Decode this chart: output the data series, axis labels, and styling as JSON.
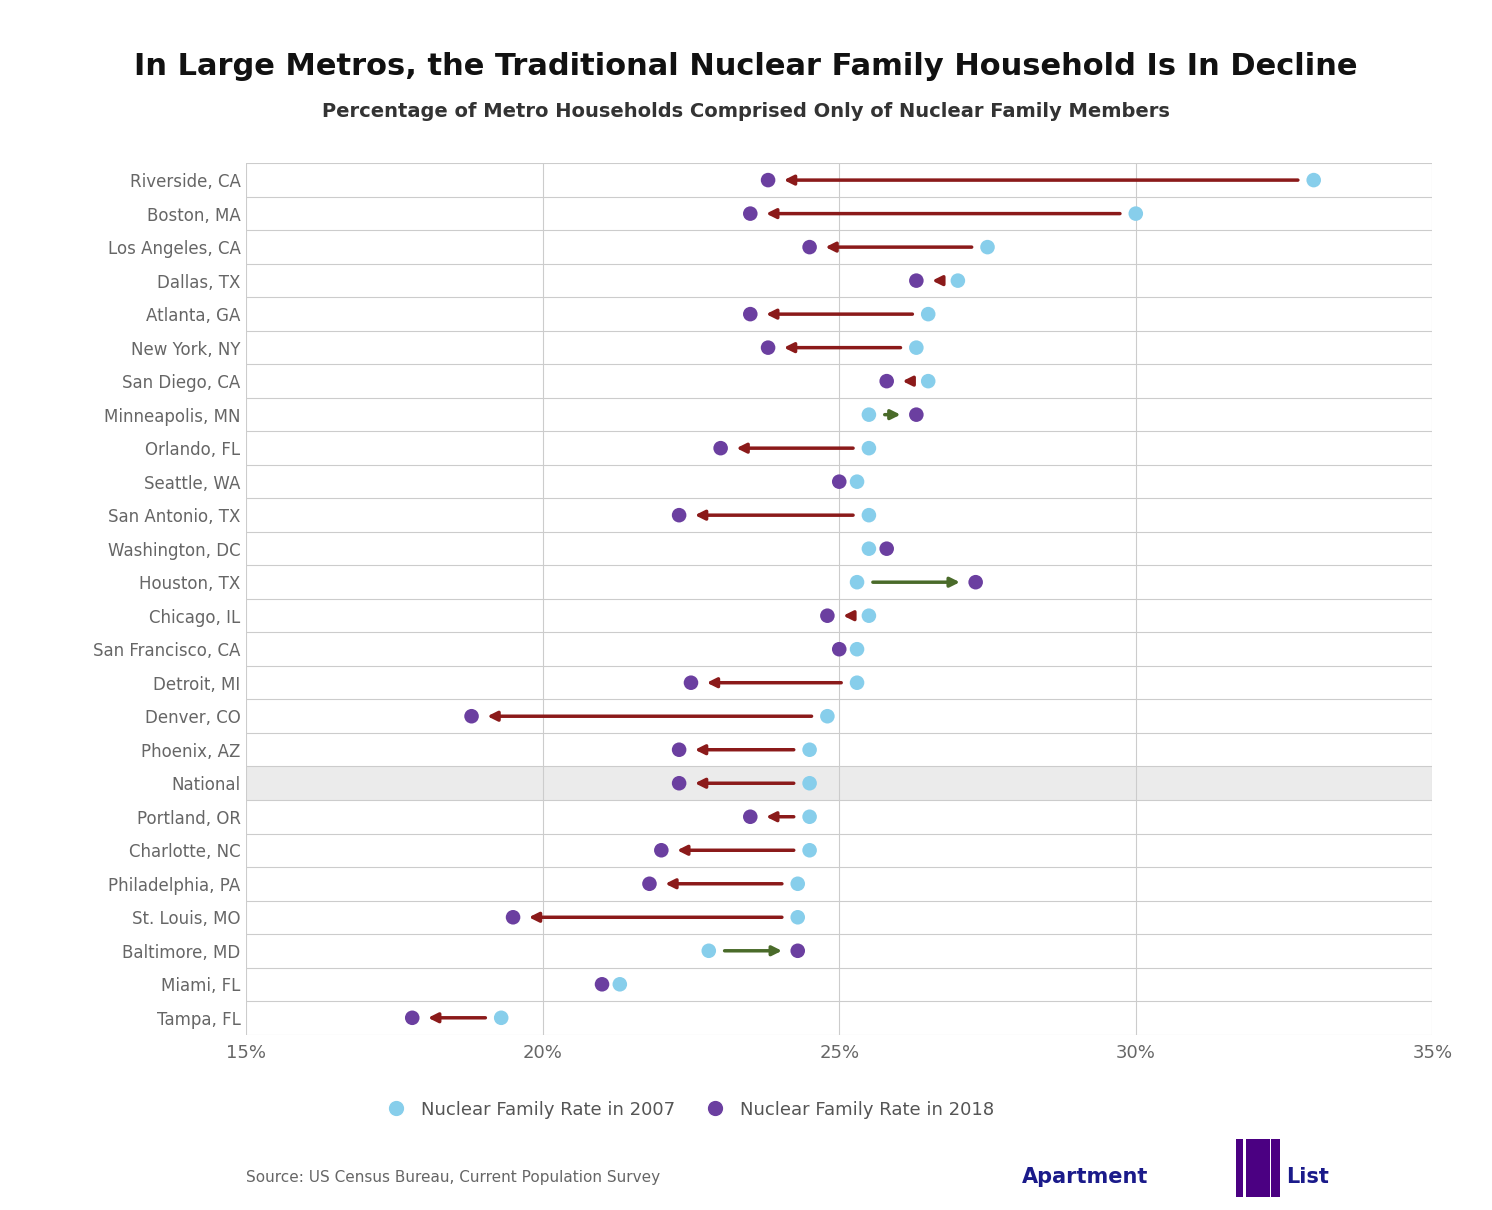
{
  "title": "In Large Metros, the Traditional Nuclear Family Household Is In Decline",
  "subtitle": "Percentage of Metro Households Comprised Only of Nuclear Family Members",
  "source": "Source: US Census Bureau, Current Population Survey",
  "cities": [
    "Riverside, CA",
    "Boston, MA",
    "Los Angeles, CA",
    "Dallas, TX",
    "Atlanta, GA",
    "New York, NY",
    "San Diego, CA",
    "Minneapolis, MN",
    "Orlando, FL",
    "Seattle, WA",
    "San Antonio, TX",
    "Washington, DC",
    "Houston, TX",
    "Chicago, IL",
    "San Francisco, CA",
    "Detroit, MI",
    "Denver, CO",
    "Phoenix, AZ",
    "National",
    "Portland, OR",
    "Charlotte, NC",
    "Philadelphia, PA",
    "St. Louis, MO",
    "Baltimore, MD",
    "Miami, FL",
    "Tampa, FL"
  ],
  "val_2007": [
    33.0,
    30.0,
    27.5,
    27.0,
    26.5,
    26.3,
    26.5,
    25.5,
    25.5,
    25.3,
    25.5,
    25.5,
    25.3,
    25.5,
    25.3,
    25.3,
    24.8,
    24.5,
    24.5,
    24.5,
    24.5,
    24.3,
    24.3,
    22.8,
    21.3,
    19.3
  ],
  "val_2018": [
    23.8,
    23.5,
    24.5,
    26.3,
    23.5,
    23.8,
    25.8,
    26.3,
    23.0,
    25.0,
    22.3,
    25.8,
    27.3,
    24.8,
    25.0,
    22.5,
    18.8,
    22.3,
    22.3,
    23.5,
    22.0,
    21.8,
    19.5,
    24.3,
    21.0,
    17.8
  ],
  "color_2007": "#87CEEB",
  "color_2018": "#6B3FA0",
  "arrow_decrease": "#8B1A1A",
  "arrow_increase": "#4A6B2A",
  "highlight_city": "National",
  "highlight_color": "#EBEBEB",
  "xmin": 15,
  "xmax": 35,
  "xticks": [
    15,
    20,
    25,
    30,
    35
  ],
  "background": "#FFFFFF",
  "grid_color": "#CCCCCC",
  "title_fontsize": 22,
  "subtitle_fontsize": 14,
  "tick_fontsize": 13,
  "city_fontsize": 12,
  "legend_fontsize": 13,
  "source_fontsize": 11
}
